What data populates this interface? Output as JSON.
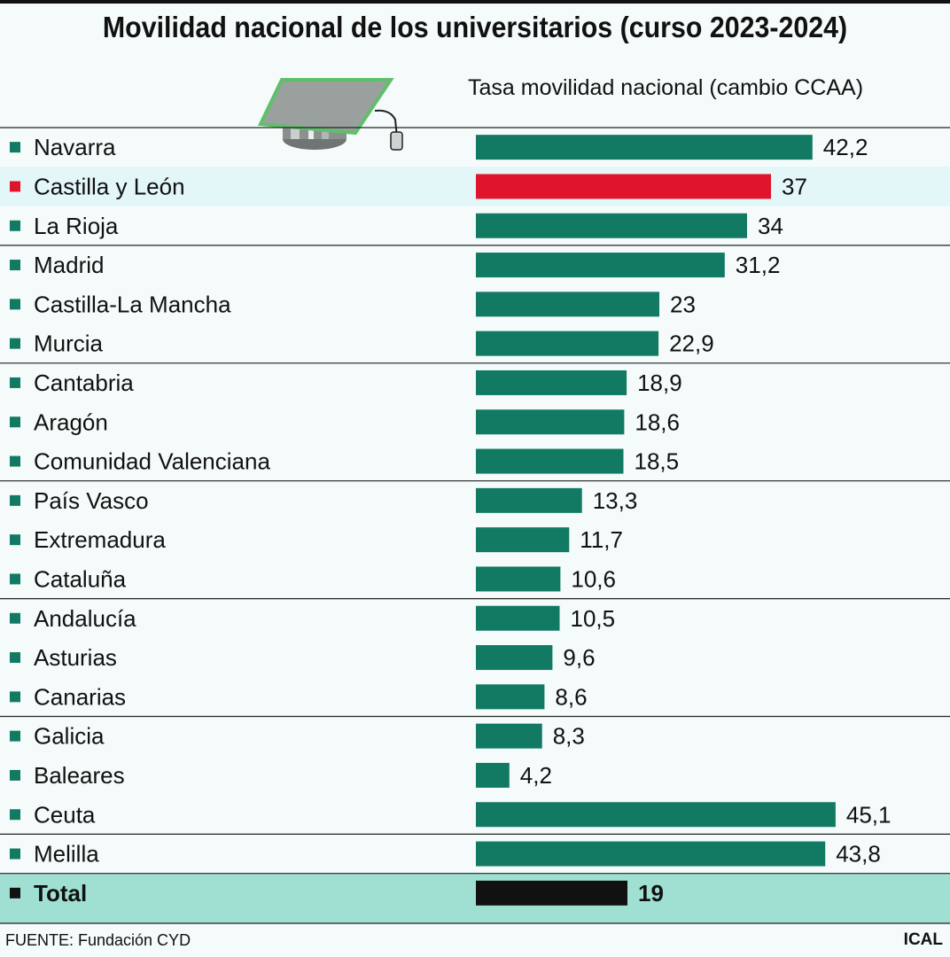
{
  "header": {
    "title": "Movilidad nacional de los universitarios (curso 2023-2024)",
    "subtitle": "Tasa movilidad nacional (cambio CCAA)"
  },
  "footer": {
    "source": "FUENTE: Fundación CYD",
    "brand": "ICAL"
  },
  "icons": {
    "illustration": "graduation-cap-icon"
  },
  "colors": {
    "bar": "#127a62",
    "highlight": "#e0152d",
    "total_bar": "#111111",
    "highlight_row_bg": "#e3f6f8",
    "total_row_bg": "#9fe0d2",
    "background": "#f4fbfa"
  },
  "chart_data": {
    "type": "bar",
    "orientation": "horizontal",
    "categories": [
      "Navarra",
      "Castilla y León",
      "La Rioja",
      "Madrid",
      "Castilla-La Mancha",
      "Murcia",
      "Cantabria",
      "Aragón",
      "Comunidad Valenciana",
      "País Vasco",
      "Extremadura",
      "Cataluña",
      "Andalucía",
      "Asturias",
      "Canarias",
      "Galicia",
      "Baleares",
      "Ceuta",
      "Melilla",
      "Total"
    ],
    "values": [
      42.2,
      37,
      34,
      31.2,
      23,
      22.9,
      18.9,
      18.6,
      18.5,
      13.3,
      11.7,
      10.6,
      10.5,
      9.6,
      8.6,
      8.3,
      4.2,
      45.1,
      43.8,
      19
    ],
    "value_labels": [
      "42,2",
      "37",
      "34",
      "31,2",
      "23",
      "22,9",
      "18,9",
      "18,6",
      "18,5",
      "13,3",
      "11,7",
      "10,6",
      "10,5",
      "9,6",
      "8,6",
      "8,3",
      "4,2",
      "45,1",
      "43,8",
      "19"
    ],
    "highlighted": [
      "Castilla y León"
    ],
    "total_category": "Total",
    "title": "Movilidad nacional de los universitarios (curso 2023-2024)",
    "ylabel": "Tasa movilidad nacional (cambio CCAA)",
    "legend": false,
    "grid": false
  }
}
